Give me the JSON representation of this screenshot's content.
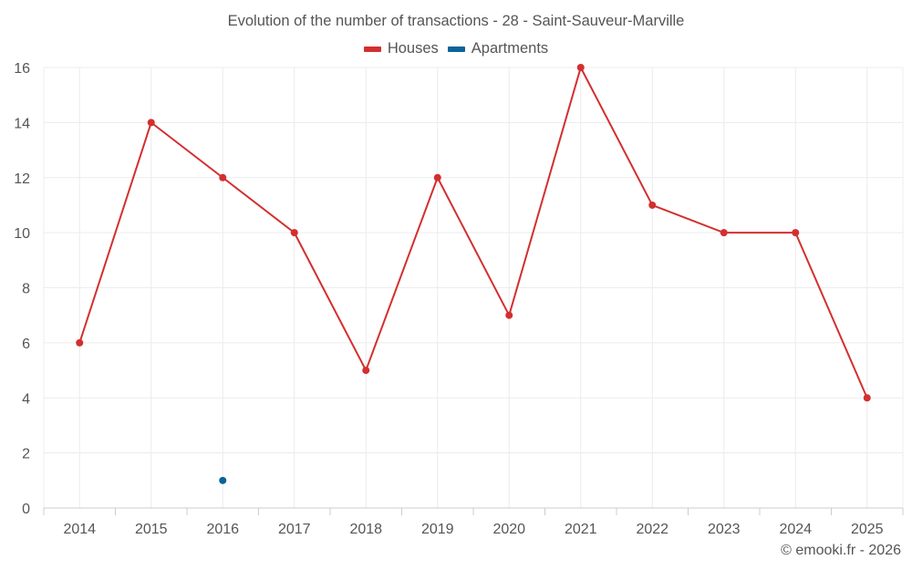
{
  "chart_data": {
    "type": "line",
    "title": "Evolution of the number of transactions - 28 - Saint-Sauveur-Marville",
    "categories": [
      "2014",
      "2015",
      "2016",
      "2017",
      "2018",
      "2019",
      "2020",
      "2021",
      "2022",
      "2023",
      "2024",
      "2025"
    ],
    "series": [
      {
        "name": "Houses",
        "color": "#d32f2f",
        "values": [
          6,
          14,
          12,
          10,
          5,
          12,
          7,
          16,
          11,
          10,
          10,
          4
        ]
      },
      {
        "name": "Apartments",
        "color": "#0a6399",
        "values": [
          null,
          null,
          1,
          null,
          null,
          null,
          null,
          null,
          null,
          null,
          null,
          null
        ]
      }
    ],
    "y_ticks": [
      0,
      2,
      4,
      6,
      8,
      10,
      12,
      14,
      16
    ],
    "ylim": [
      0,
      16
    ],
    "xlabel": "",
    "ylabel": "",
    "grid": true,
    "legend_position": "top-center"
  },
  "credit": "© emooki.fr - 2026"
}
